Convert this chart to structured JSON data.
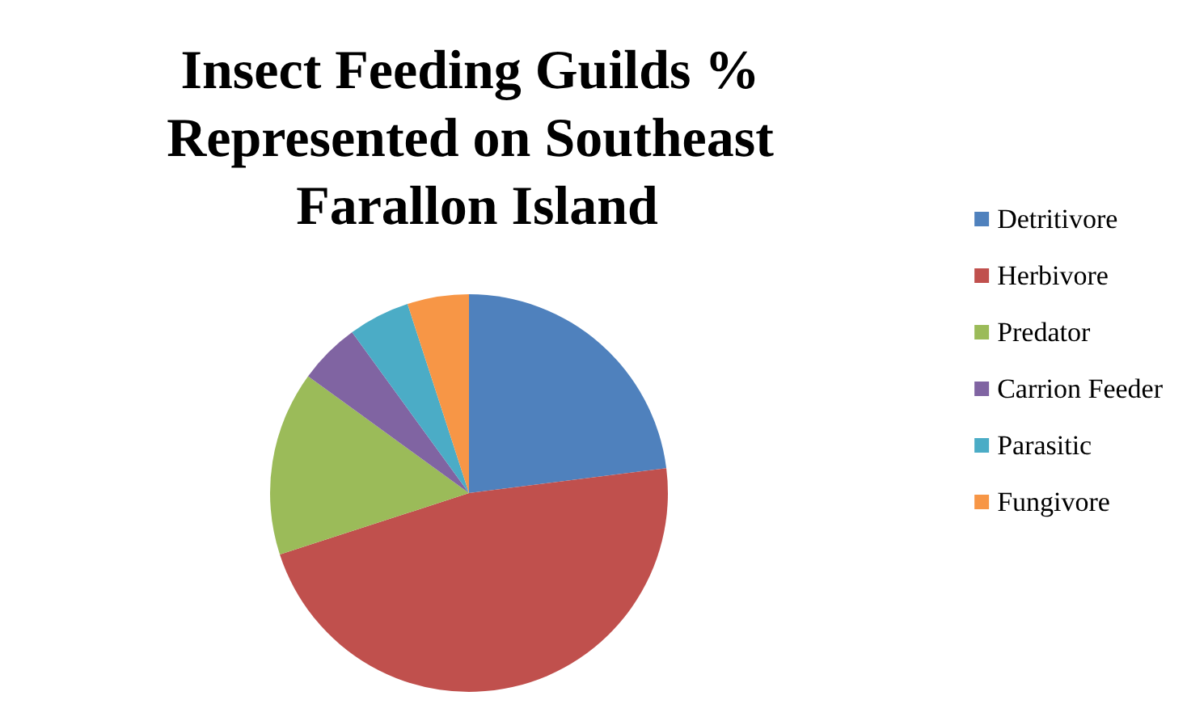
{
  "chart_data": {
    "type": "pie",
    "title": "Insect Feeding Guilds % Represented on Southeast Farallon Island",
    "categories": [
      "Detritivore",
      "Herbivore",
      "Predator",
      "Carrion Feeder",
      "Parasitic",
      "Fungivore"
    ],
    "values": [
      23,
      47,
      15,
      5,
      5,
      5
    ],
    "colors": [
      "#4f81bd",
      "#c0504d",
      "#9bbb59",
      "#8064a2",
      "#4bacc6",
      "#f79646"
    ],
    "legend": "right"
  }
}
